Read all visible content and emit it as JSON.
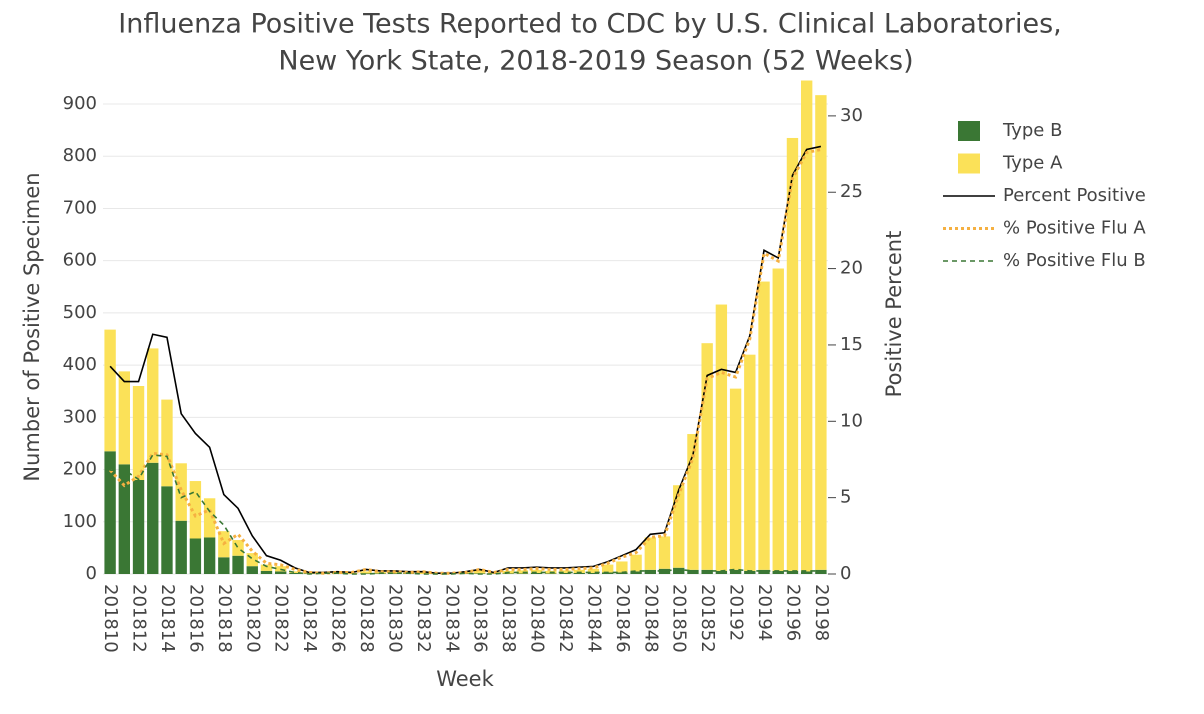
{
  "chart_data": {
    "type": "bar",
    "title": [
      "Influenza Positive Tests Reported to CDC by U.S. Clinical Laboratories,",
      "New York State, 2018-2019 Season (52 Weeks)"
    ],
    "xlabel": "Week",
    "ylabel": "Number of Positive Specimen",
    "y2label": "Positive Percent",
    "categories": [
      "201810",
      null,
      "201812",
      null,
      "201814",
      null,
      "201816",
      null,
      "201818",
      null,
      "201820",
      null,
      "201822",
      null,
      "201824",
      null,
      "201826",
      null,
      "201828",
      null,
      "201830",
      null,
      "201832",
      null,
      "201834",
      null,
      "201836",
      null,
      "201838",
      null,
      "201840",
      null,
      "201842",
      null,
      "201844",
      null,
      "201846",
      null,
      "201848",
      null,
      "201850",
      null,
      "201852",
      null,
      "20192",
      null,
      "20194",
      null,
      "20196",
      null,
      "20198"
    ],
    "series": [
      {
        "name": "Type B",
        "type": "bar",
        "color": "#3a7734",
        "values": [
          235,
          210,
          180,
          213,
          168,
          102,
          68,
          70,
          32,
          35,
          15,
          6,
          5,
          2,
          1,
          1,
          1,
          0,
          1,
          1,
          1,
          1,
          0,
          0,
          0,
          1,
          1,
          1,
          1,
          1,
          2,
          1,
          2,
          2,
          2,
          3,
          3,
          5,
          8,
          10,
          12,
          8,
          8,
          6,
          8,
          6,
          8,
          6,
          6,
          5,
          8
        ]
      },
      {
        "name": "Type A",
        "type": "bar",
        "color": "#fbe158",
        "values": [
          233,
          178,
          180,
          219,
          166,
          110,
          110,
          75,
          50,
          30,
          25,
          12,
          10,
          3,
          2,
          1,
          2,
          2,
          4,
          3,
          3,
          2,
          3,
          2,
          2,
          3,
          7,
          3,
          5,
          6,
          6,
          5,
          5,
          6,
          8,
          15,
          21,
          32,
          62,
          62,
          158,
          260,
          434,
          510,
          347,
          414,
          552,
          579,
          829,
          940,
          909
        ]
      },
      {
        "name": "Percent Positive",
        "type": "line",
        "axis": "y2",
        "color": "#000000",
        "dash": "solid",
        "values": [
          13.6,
          12.6,
          12.6,
          15.7,
          15.5,
          10.5,
          9.2,
          8.3,
          5.2,
          4.3,
          2.5,
          1.2,
          0.9,
          0.4,
          0.1,
          0.1,
          0.15,
          0.1,
          0.3,
          0.2,
          0.2,
          0.15,
          0.15,
          0.05,
          0.05,
          0.15,
          0.3,
          0.1,
          0.4,
          0.4,
          0.45,
          0.4,
          0.4,
          0.45,
          0.5,
          0.8,
          1.2,
          1.6,
          2.6,
          2.7,
          5.5,
          7.8,
          13.0,
          13.4,
          13.2,
          15.6,
          21.2,
          20.7,
          26.1,
          27.8,
          28.0
        ]
      },
      {
        "name": "% Positive Flu A",
        "type": "line",
        "axis": "y2",
        "color": "#f5b041",
        "dash": "dot",
        "values": [
          6.8,
          5.8,
          6.4,
          7.9,
          7.8,
          5.5,
          3.8,
          4.2,
          2.0,
          2.6,
          1.5,
          0.7,
          0.6,
          0.3,
          0.1,
          0.05,
          0.1,
          0.1,
          0.3,
          0.15,
          0.15,
          0.1,
          0.15,
          0.05,
          0.05,
          0.1,
          0.3,
          0.1,
          0.3,
          0.3,
          0.35,
          0.3,
          0.3,
          0.35,
          0.4,
          0.7,
          1.1,
          1.4,
          2.4,
          2.5,
          5.2,
          7.6,
          12.8,
          13.2,
          12.9,
          15.4,
          21.0,
          20.5,
          25.9,
          27.6,
          27.8
        ]
      },
      {
        "name": "% Positive Flu B",
        "type": "line",
        "axis": "y2",
        "color": "#3a7734",
        "dash": "dash",
        "values": [
          6.8,
          6.8,
          6.2,
          7.8,
          7.7,
          5.0,
          5.4,
          4.1,
          3.2,
          1.7,
          1.0,
          0.5,
          0.3,
          0.1,
          0.0,
          0.05,
          0.05,
          0.0,
          0.0,
          0.05,
          0.05,
          0.05,
          0.0,
          0.0,
          0.0,
          0.05,
          0.0,
          0.0,
          0.1,
          0.1,
          0.1,
          0.1,
          0.1,
          0.1,
          0.1,
          0.1,
          0.1,
          0.2,
          0.2,
          0.2,
          0.3,
          0.2,
          0.2,
          0.2,
          0.3,
          0.2,
          0.2,
          0.2,
          0.2,
          0.2,
          0.2
        ]
      }
    ],
    "ylim": [
      0,
      946
    ],
    "yticks": [
      0,
      100,
      200,
      300,
      400,
      500,
      600,
      700,
      800,
      900
    ],
    "y2lim": [
      0,
      32.35
    ],
    "y2ticks": [
      0,
      5,
      10,
      15,
      20,
      25,
      30
    ],
    "grid": true,
    "legend": "right"
  }
}
